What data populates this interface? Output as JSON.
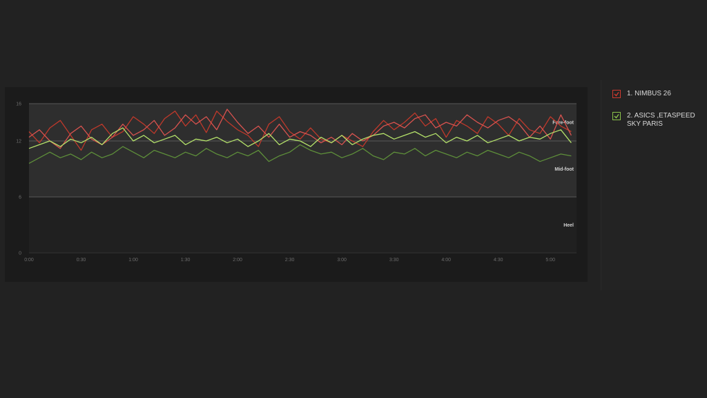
{
  "legend": [
    {
      "label": "1. NIMBUS 26",
      "color": "#d03a2f",
      "checked": true,
      "icon": "check-icon"
    },
    {
      "label": "2. ASICS ,ETASPEED SKY PARIS",
      "color": "#8bc34a",
      "checked": true,
      "icon": "check-icon"
    }
  ],
  "chart_data": {
    "type": "line",
    "ylim": [
      0,
      16
    ],
    "yticks": [
      0,
      6,
      12,
      16
    ],
    "xlim": [
      0,
      5.25
    ],
    "xticks": [
      {
        "value": 0,
        "label": "0:00"
      },
      {
        "value": 0.5,
        "label": "0:30"
      },
      {
        "value": 1,
        "label": "1:00"
      },
      {
        "value": 1.5,
        "label": "1:30"
      },
      {
        "value": 2,
        "label": "2:00"
      },
      {
        "value": 2.5,
        "label": "2:30"
      },
      {
        "value": 3,
        "label": "3:00"
      },
      {
        "value": 3.5,
        "label": "3:30"
      },
      {
        "value": 4,
        "label": "4:00"
      },
      {
        "value": 4.5,
        "label": "4:30"
      },
      {
        "value": 5,
        "label": "5:00"
      }
    ],
    "zones": [
      {
        "label": "Fore-foot",
        "y": 14
      },
      {
        "label": "Mid-foot",
        "y": 9
      },
      {
        "label": "Heel",
        "y": 3
      }
    ],
    "shaded_band": [
      6,
      16
    ],
    "grid_lines": [
      6,
      12,
      16
    ],
    "series": [
      {
        "name": "1. NIMBUS 26",
        "color": "#c0392b",
        "x": [
          0,
          0.1,
          0.2,
          0.3,
          0.4,
          0.5,
          0.6,
          0.7,
          0.8,
          0.9,
          1.0,
          1.1,
          1.2,
          1.3,
          1.4,
          1.5,
          1.6,
          1.7,
          1.8,
          1.9,
          2.0,
          2.1,
          2.2,
          2.3,
          2.4,
          2.5,
          2.6,
          2.7,
          2.8,
          2.9,
          3.0,
          3.1,
          3.2,
          3.3,
          3.4,
          3.5,
          3.6,
          3.7,
          3.8,
          3.9,
          4.0,
          4.1,
          4.2,
          4.3,
          4.4,
          4.5,
          4.6,
          4.7,
          4.8,
          4.9,
          5.0,
          5.1,
          5.2
        ],
        "y": [
          13.0,
          11.8,
          13.4,
          14.2,
          12.6,
          11.0,
          13.2,
          13.8,
          12.4,
          13.0,
          14.6,
          13.8,
          12.8,
          14.4,
          15.2,
          13.6,
          14.8,
          12.9,
          15.2,
          14.1,
          13.2,
          12.6,
          11.4,
          13.8,
          14.6,
          13.0,
          12.2,
          13.4,
          12.2,
          11.8,
          12.6,
          12.0,
          11.4,
          13.0,
          14.2,
          13.2,
          14.0,
          15.0,
          13.6,
          14.4,
          12.4,
          14.2,
          13.6,
          12.8,
          14.6,
          13.8,
          12.6,
          14.4,
          13.2,
          12.8,
          14.6,
          13.6,
          13.0
        ]
      },
      {
        "name": "1. NIMBUS 26",
        "color": "#d9534f",
        "x": [
          0,
          0.1,
          0.2,
          0.3,
          0.4,
          0.5,
          0.6,
          0.7,
          0.8,
          0.9,
          1.0,
          1.1,
          1.2,
          1.3,
          1.4,
          1.5,
          1.6,
          1.7,
          1.8,
          1.9,
          2.0,
          2.1,
          2.2,
          2.3,
          2.4,
          2.5,
          2.6,
          2.7,
          2.8,
          2.9,
          3.0,
          3.1,
          3.2,
          3.3,
          3.4,
          3.5,
          3.6,
          3.7,
          3.8,
          3.9,
          4.0,
          4.1,
          4.2,
          4.3,
          4.4,
          4.5,
          4.6,
          4.7,
          4.8,
          4.9,
          5.0,
          5.1,
          5.2
        ],
        "y": [
          12.4,
          13.2,
          12.0,
          11.2,
          12.8,
          13.6,
          12.2,
          11.6,
          12.4,
          13.8,
          12.6,
          13.2,
          14.2,
          12.6,
          13.4,
          14.8,
          13.8,
          14.6,
          13.2,
          15.4,
          14.0,
          12.8,
          13.6,
          12.4,
          13.8,
          12.4,
          13.0,
          12.6,
          11.8,
          12.4,
          11.6,
          12.8,
          12.0,
          12.6,
          13.6,
          14.0,
          13.4,
          14.4,
          14.8,
          13.4,
          14.0,
          13.6,
          14.8,
          14.0,
          13.4,
          14.2,
          14.6,
          13.8,
          12.4,
          13.6,
          12.2,
          14.8,
          12.6
        ]
      },
      {
        "name": "2. ASICS ,ETASPEED SKY PARIS",
        "color": "#b5e36a",
        "x": [
          0,
          0.1,
          0.2,
          0.3,
          0.4,
          0.5,
          0.6,
          0.7,
          0.8,
          0.9,
          1.0,
          1.1,
          1.2,
          1.3,
          1.4,
          1.5,
          1.6,
          1.7,
          1.8,
          1.9,
          2.0,
          2.1,
          2.2,
          2.3,
          2.4,
          2.5,
          2.6,
          2.7,
          2.8,
          2.9,
          3.0,
          3.1,
          3.2,
          3.3,
          3.4,
          3.5,
          3.6,
          3.7,
          3.8,
          3.9,
          4.0,
          4.1,
          4.2,
          4.3,
          4.4,
          4.5,
          4.6,
          4.7,
          4.8,
          4.9,
          5.0,
          5.1,
          5.2
        ],
        "y": [
          11.2,
          11.6,
          12.0,
          11.4,
          12.2,
          11.8,
          12.4,
          11.6,
          12.8,
          13.4,
          12.0,
          12.6,
          11.8,
          12.2,
          12.6,
          11.6,
          12.2,
          12.0,
          12.4,
          11.8,
          12.2,
          11.4,
          12.0,
          12.8,
          11.6,
          12.2,
          12.0,
          11.4,
          12.4,
          11.8,
          12.6,
          11.6,
          12.2,
          12.6,
          12.8,
          12.2,
          12.6,
          13.0,
          12.4,
          12.8,
          11.8,
          12.4,
          12.0,
          12.6,
          11.8,
          12.2,
          12.6,
          12.0,
          12.4,
          12.2,
          12.8,
          13.2,
          11.8
        ]
      },
      {
        "name": "2. ASICS ,ETASPEED SKY PARIS",
        "color": "#5e8f3a",
        "x": [
          0,
          0.1,
          0.2,
          0.3,
          0.4,
          0.5,
          0.6,
          0.7,
          0.8,
          0.9,
          1.0,
          1.1,
          1.2,
          1.3,
          1.4,
          1.5,
          1.6,
          1.7,
          1.8,
          1.9,
          2.0,
          2.1,
          2.2,
          2.3,
          2.4,
          2.5,
          2.6,
          2.7,
          2.8,
          2.9,
          3.0,
          3.1,
          3.2,
          3.3,
          3.4,
          3.5,
          3.6,
          3.7,
          3.8,
          3.9,
          4.0,
          4.1,
          4.2,
          4.3,
          4.4,
          4.5,
          4.6,
          4.7,
          4.8,
          4.9,
          5.0,
          5.1,
          5.2
        ],
        "y": [
          9.6,
          10.2,
          10.8,
          10.2,
          10.6,
          10.0,
          10.8,
          10.2,
          10.6,
          11.4,
          10.8,
          10.2,
          11.0,
          10.6,
          10.2,
          10.8,
          10.4,
          11.2,
          10.6,
          10.2,
          10.8,
          10.4,
          11.0,
          9.8,
          10.4,
          10.8,
          11.6,
          11.0,
          10.6,
          10.8,
          10.2,
          10.6,
          11.2,
          10.4,
          10.0,
          10.8,
          10.6,
          11.2,
          10.4,
          11.0,
          10.6,
          10.2,
          10.8,
          10.4,
          11.0,
          10.6,
          10.2,
          10.8,
          10.4,
          9.8,
          10.2,
          10.6,
          10.4
        ]
      }
    ]
  }
}
